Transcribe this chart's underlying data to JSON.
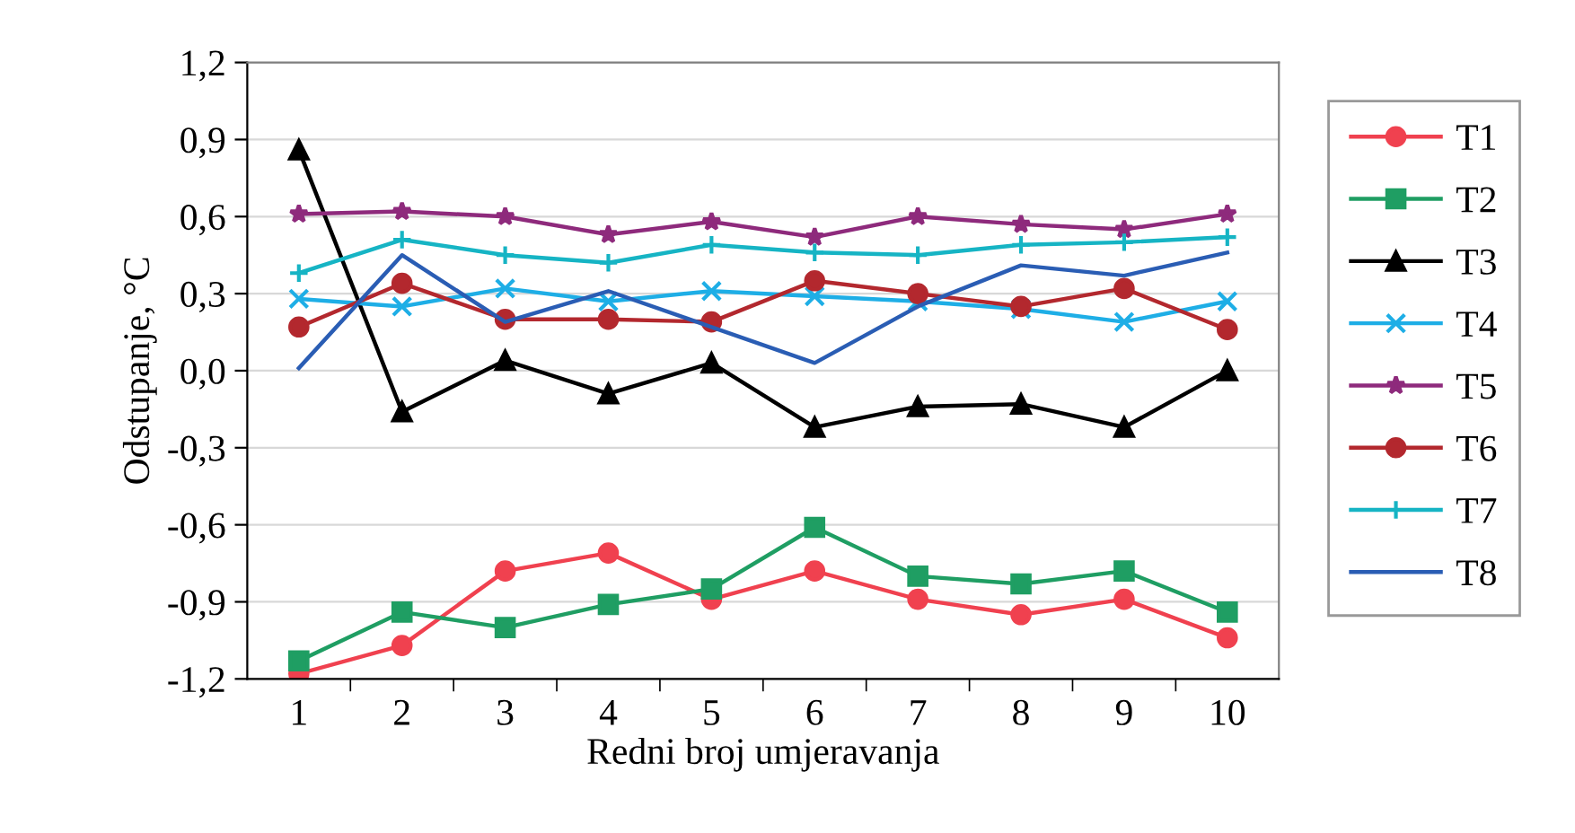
{
  "chart_data": {
    "type": "line",
    "xlabel": "Redni broj umjeravanja",
    "ylabel": "Odstupanje, °C",
    "categories": [
      "1",
      "2",
      "3",
      "4",
      "5",
      "6",
      "7",
      "8",
      "9",
      "10"
    ],
    "ylim": [
      -1.2,
      1.2
    ],
    "yticks": [
      {
        "value": -1.2,
        "label": "-1,2"
      },
      {
        "value": -0.9,
        "label": "-0,9"
      },
      {
        "value": -0.6,
        "label": "-0,6"
      },
      {
        "value": -0.3,
        "label": "-0,3"
      },
      {
        "value": 0.0,
        "label": "0,0"
      },
      {
        "value": 0.3,
        "label": "0,3"
      },
      {
        "value": 0.6,
        "label": "0,6"
      },
      {
        "value": 0.9,
        "label": "0,9"
      },
      {
        "value": 1.2,
        "label": "1,2"
      }
    ],
    "grid": "y",
    "legend": "right",
    "line_style": "solid",
    "series": [
      {
        "name": "T1",
        "color": "#f0414f",
        "marker": "circle",
        "values": [
          -1.18,
          -1.07,
          -0.78,
          -0.71,
          -0.89,
          -0.78,
          -0.89,
          -0.95,
          -0.89,
          -1.04
        ]
      },
      {
        "name": "T2",
        "color": "#1f9e63",
        "marker": "square",
        "values": [
          -1.13,
          -0.94,
          -1.0,
          -0.91,
          -0.85,
          -0.61,
          -0.8,
          -0.83,
          -0.78,
          -0.94
        ]
      },
      {
        "name": "T3",
        "color": "#000000",
        "marker": "triangle",
        "values": [
          0.86,
          -0.16,
          0.04,
          -0.09,
          0.03,
          -0.22,
          -0.14,
          -0.13,
          -0.22,
          0.0
        ]
      },
      {
        "name": "T4",
        "color": "#1eaee6",
        "marker": "cross",
        "values": [
          0.28,
          0.25,
          0.32,
          0.27,
          0.31,
          0.29,
          0.27,
          0.24,
          0.19,
          0.27
        ]
      },
      {
        "name": "T5",
        "color": "#8e2a7c",
        "marker": "star",
        "values": [
          0.61,
          0.62,
          0.6,
          0.53,
          0.58,
          0.52,
          0.6,
          0.57,
          0.55,
          0.61
        ]
      },
      {
        "name": "T6",
        "color": "#b3282e",
        "marker": "circle",
        "values": [
          0.17,
          0.34,
          0.2,
          0.2,
          0.19,
          0.35,
          0.3,
          0.25,
          0.32,
          0.16
        ]
      },
      {
        "name": "T7",
        "color": "#16b4c4",
        "marker": "cross",
        "values": [
          0.38,
          0.51,
          0.45,
          0.42,
          0.49,
          0.46,
          0.45,
          0.49,
          0.5,
          0.52
        ]
      },
      {
        "name": "T8",
        "color": "#2a5db4",
        "marker": "none",
        "values": [
          0.01,
          0.45,
          0.19,
          0.31,
          0.17,
          0.03,
          0.25,
          0.41,
          0.37,
          0.46
        ]
      }
    ]
  }
}
